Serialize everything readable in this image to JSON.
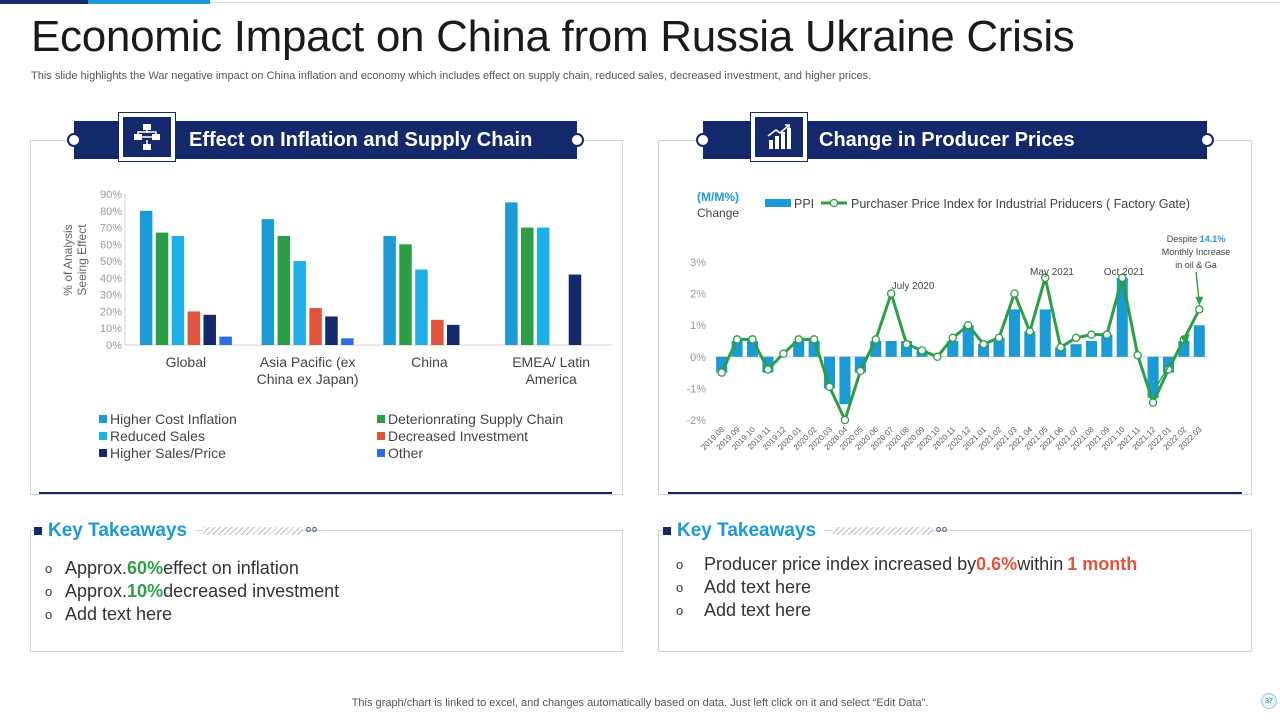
{
  "header": {
    "title": "Economic Impact on China from Russia Ukraine Crisis",
    "subtitle": "This slide highlights the War negative impact on China inflation and economy which includes effect on supply chain, reduced sales, decreased investment, and higher prices."
  },
  "left_panel": {
    "title": "Effect on Inflation and Supply Chain",
    "icon": "flowchart-icon"
  },
  "right_panel": {
    "title": "Change in Producer Prices",
    "icon": "rising-bar-chart-icon"
  },
  "chart_data": [
    {
      "type": "bar",
      "ylabel": "% of Analysis Seeing Effect",
      "ylim": [
        0,
        90
      ],
      "yticks": [
        "0%",
        "10%",
        "20%",
        "30%",
        "40%",
        "50%",
        "60%",
        "70%",
        "80%",
        "90%"
      ],
      "categories": [
        "Global",
        "Asia Pacific (ex China ex Japan)",
        "China",
        "EMEA/ Latin America"
      ],
      "category_lines": [
        [
          "Global"
        ],
        [
          "Asia Pacific (ex",
          "China ex Japan)"
        ],
        [
          "China"
        ],
        [
          "EMEA/ Latin",
          "America"
        ]
      ],
      "legend_position": "bottom",
      "series": [
        {
          "name": "Higher Cost Inflation",
          "color": "#1b9ad6",
          "values": [
            80,
            75,
            65,
            85
          ]
        },
        {
          "name": "Deterionrating Supply Chain",
          "color": "#2e9e46",
          "values": [
            67,
            65,
            60,
            70
          ]
        },
        {
          "name": "Reduced Sales",
          "color": "#1eaee8",
          "values": [
            65,
            50,
            45,
            70
          ]
        },
        {
          "name": "Decreased Investment",
          "color": "#e2533b",
          "values": [
            20,
            22,
            15,
            null
          ]
        },
        {
          "name": "Higher Sales/Price",
          "color": "#14296b",
          "values": [
            18,
            17,
            12,
            42
          ]
        },
        {
          "name": "Other",
          "color": "#2b6ee0",
          "values": [
            5,
            4,
            null,
            null
          ]
        }
      ]
    },
    {
      "type": "bar+line",
      "ylabel_lines": [
        "(M/M%)",
        "Change"
      ],
      "ylim": [
        -2,
        3
      ],
      "yticks": [
        "-2%",
        "-1%",
        "0%",
        "1%",
        "2%",
        "3%"
      ],
      "x": [
        "2019.08",
        "2019.09",
        "2019.10",
        "2019.11",
        "2019.12",
        "2020.01",
        "2020.02",
        "2020.03",
        "2020.04",
        "2020.05",
        "2020.06",
        "2020.07",
        "2020.08",
        "2020.09",
        "2020.10",
        "2020.11",
        "2020.12",
        "2021.01",
        "2021.02",
        "2021.03",
        "2021.04",
        "2021.05",
        "2021.06",
        "2021.07",
        "2021.08",
        "2021.09",
        "2021.10",
        "2021.11",
        "2021.12",
        "2022.01",
        "2022.02",
        "2022.03"
      ],
      "legend_position": "top",
      "series": [
        {
          "name": "PPI",
          "kind": "bar",
          "color": "#1b9ad6",
          "values": [
            -0.5,
            0.5,
            0.5,
            -0.5,
            0.0,
            0.5,
            0.5,
            -1.0,
            -1.5,
            -0.5,
            0.5,
            0.5,
            0.5,
            0.2,
            0.0,
            0.5,
            1.0,
            0.4,
            0.6,
            1.5,
            0.8,
            1.5,
            0.3,
            0.4,
            0.5,
            0.7,
            2.5,
            0.0,
            -1.3,
            -0.5,
            0.5,
            1.0
          ]
        },
        {
          "name": "Purchaser Price Index for Industrial Priducers ( Factory Gate)",
          "kind": "line",
          "color": "#2e9e46",
          "values": [
            -0.5,
            0.55,
            0.55,
            -0.4,
            0.1,
            0.55,
            0.55,
            -0.95,
            -2.0,
            -0.45,
            0.55,
            2.0,
            0.4,
            0.2,
            0.0,
            0.6,
            1.0,
            0.4,
            0.6,
            2.0,
            0.8,
            2.5,
            0.3,
            0.6,
            0.7,
            0.7,
            2.5,
            0.05,
            -1.45,
            -0.4,
            0.55,
            1.5
          ]
        }
      ],
      "annotations": {
        "july_2020": "July 2020",
        "may_2021": "May 2021",
        "oct_2021": "Oct 2021",
        "despite_1": "Despite ",
        "despite_pct": "14.1%",
        "despite_2": "Monthly Increase",
        "despite_3": "in oil & Ga"
      }
    }
  ],
  "left_takeaways": {
    "title": "Key Takeaways",
    "dots": "oo",
    "items": [
      {
        "pre": "Approx. ",
        "hl": "60%",
        "post": " effect on inflation"
      },
      {
        "pre": "Approx. ",
        "hl": "10%",
        "post": " decreased investment"
      },
      {
        "pre": "Add text here",
        "hl": "",
        "post": ""
      }
    ]
  },
  "right_takeaways": {
    "title": "Key Takeaways",
    "dots": "oo",
    "items": [
      {
        "pre": "Producer price index increased by ",
        "hl": "0.6%",
        "mid": " within ",
        "hl2": "1 month"
      },
      {
        "pre": "Add text here",
        "hl": "",
        "mid": "",
        "hl2": ""
      },
      {
        "pre": "Add text here",
        "hl": "",
        "mid": "",
        "hl2": ""
      }
    ]
  },
  "footer": {
    "text": "This graph/chart is linked to excel,  and changes automatically based on data. Just left click on it and select “Edit Data”.",
    "page_number": "37"
  },
  "colors": {
    "navy": "#14296b",
    "blue": "#1b9ad6",
    "green": "#2e9e46",
    "red": "#e2533b"
  }
}
